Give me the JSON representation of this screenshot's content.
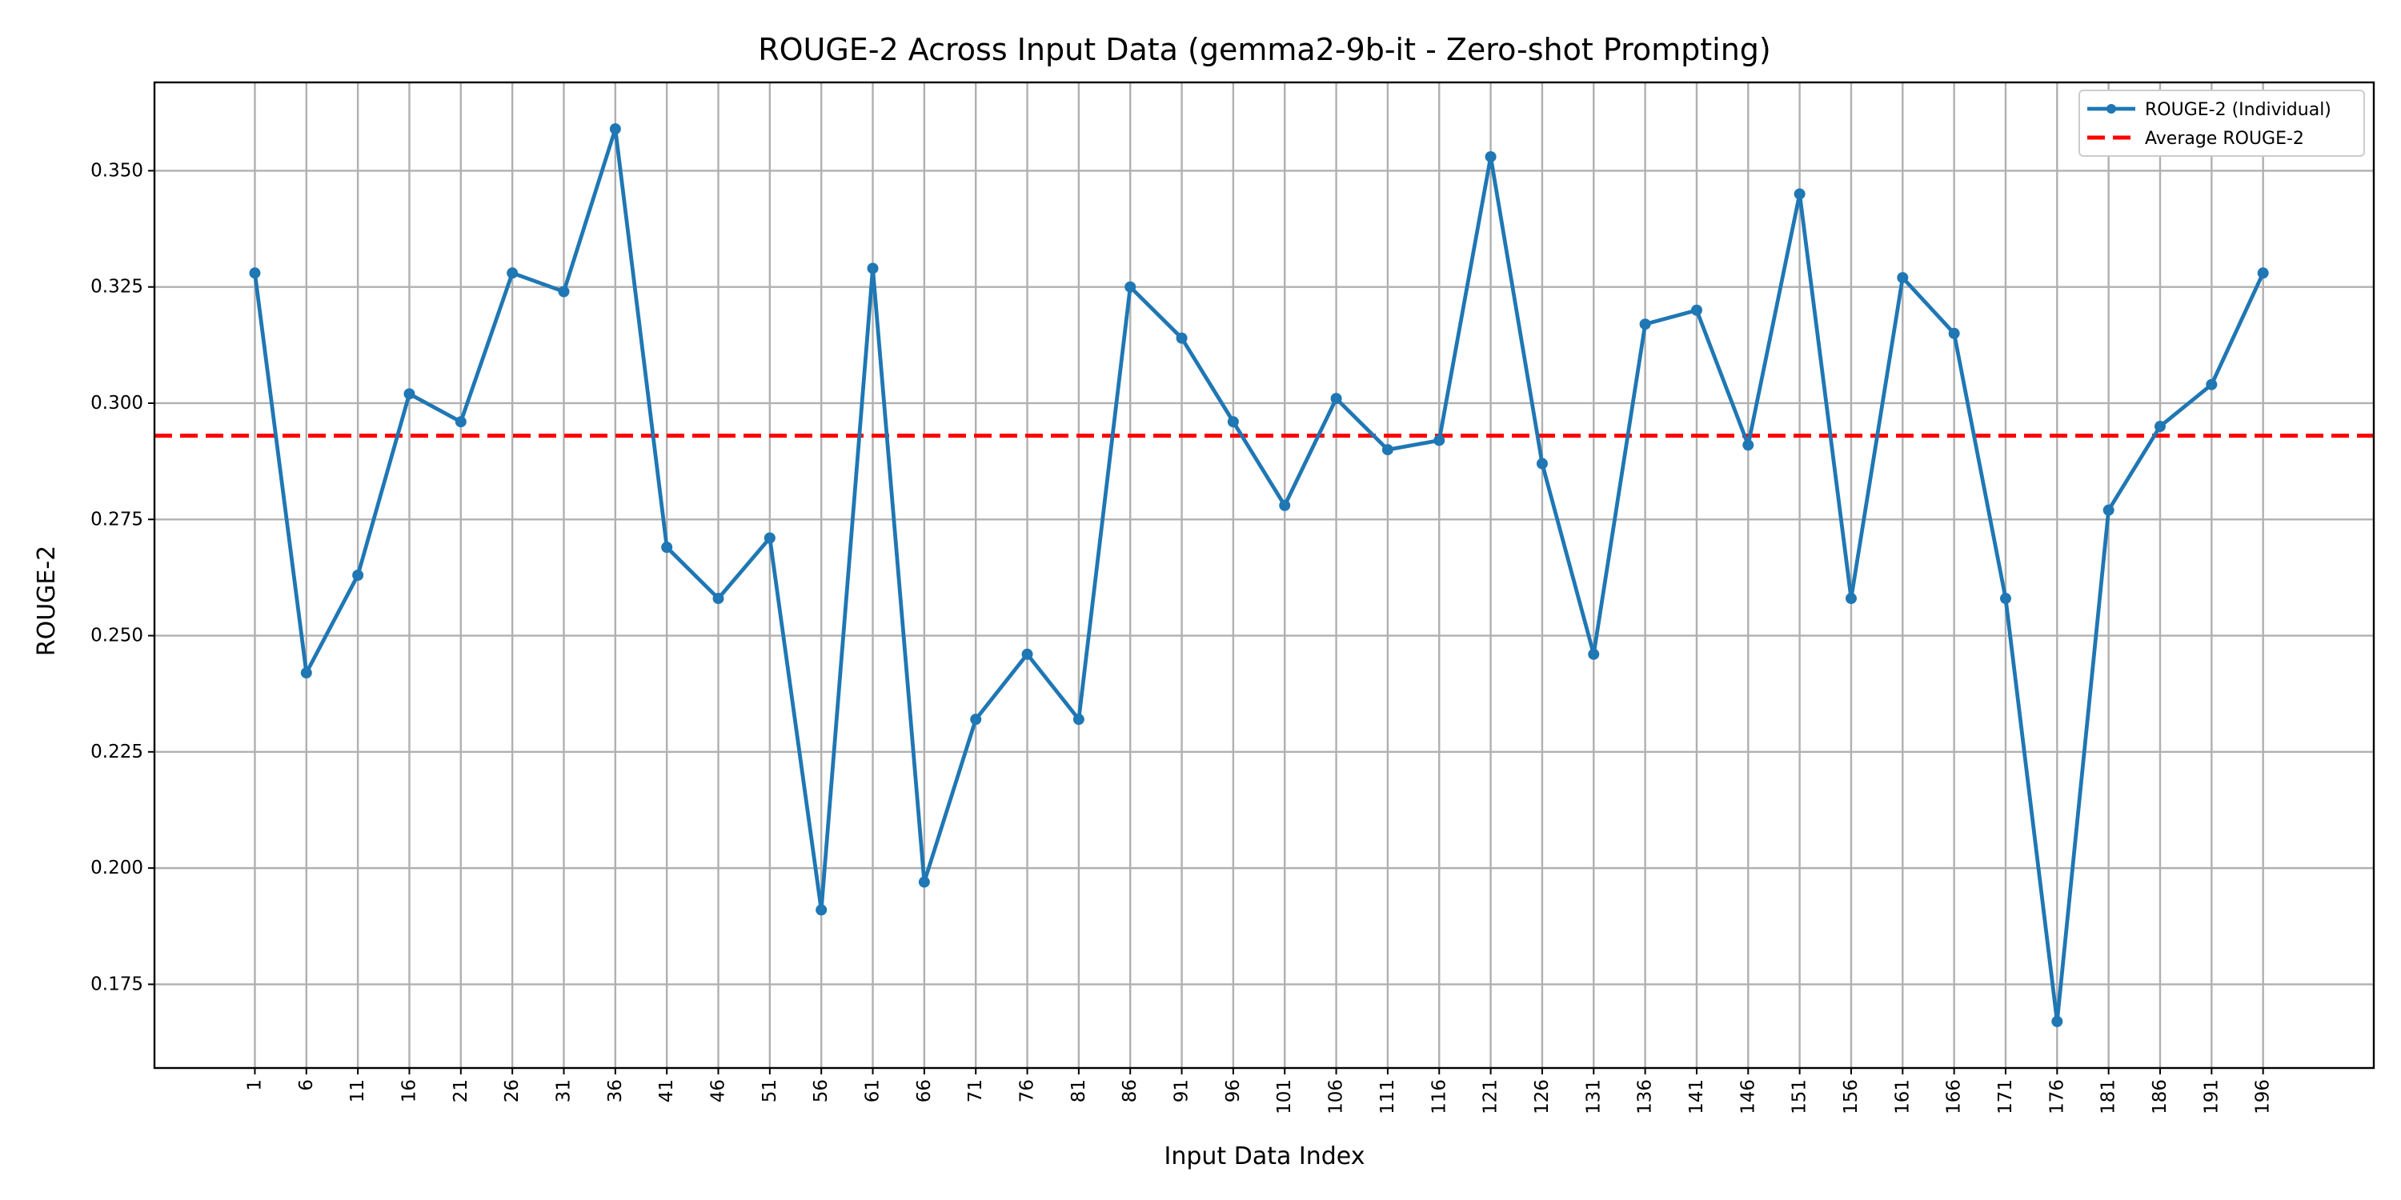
{
  "chart_data": {
    "type": "line",
    "title": "ROUGE-2 Across Input Data (gemma2-9b-it - Zero-shot Prompting)",
    "xlabel": "Input Data Index",
    "ylabel": "ROUGE-2",
    "x": [
      1,
      6,
      11,
      16,
      21,
      26,
      31,
      36,
      41,
      46,
      51,
      56,
      61,
      66,
      71,
      76,
      81,
      86,
      91,
      96,
      101,
      106,
      111,
      116,
      121,
      126,
      131,
      136,
      141,
      146,
      151,
      156,
      161,
      166,
      171,
      176,
      181,
      186,
      191,
      196
    ],
    "xlim": [
      -8.75,
      206.75
    ],
    "ylim": [
      0.157,
      0.369
    ],
    "yticks": [
      0.175,
      0.2,
      0.225,
      0.25,
      0.275,
      0.3,
      0.325,
      0.35
    ],
    "grid": true,
    "legend_position": "top-right",
    "series": [
      {
        "name": "ROUGE-2 (Individual)",
        "color": "#1f77b4",
        "style": "solid-with-markers",
        "values": [
          0.328,
          0.242,
          0.263,
          0.302,
          0.296,
          0.328,
          0.324,
          0.359,
          0.269,
          0.258,
          0.271,
          0.191,
          0.329,
          0.197,
          0.232,
          0.246,
          0.232,
          0.325,
          0.314,
          0.296,
          0.278,
          0.301,
          0.29,
          0.292,
          0.353,
          0.287,
          0.246,
          0.317,
          0.32,
          0.291,
          0.345,
          0.258,
          0.327,
          0.315,
          0.258,
          0.167,
          0.277,
          0.295,
          0.304,
          0.328
        ]
      }
    ],
    "average": {
      "name": "Average ROUGE-2",
      "color": "#ff0000",
      "style": "dashed",
      "value": 0.293
    }
  }
}
